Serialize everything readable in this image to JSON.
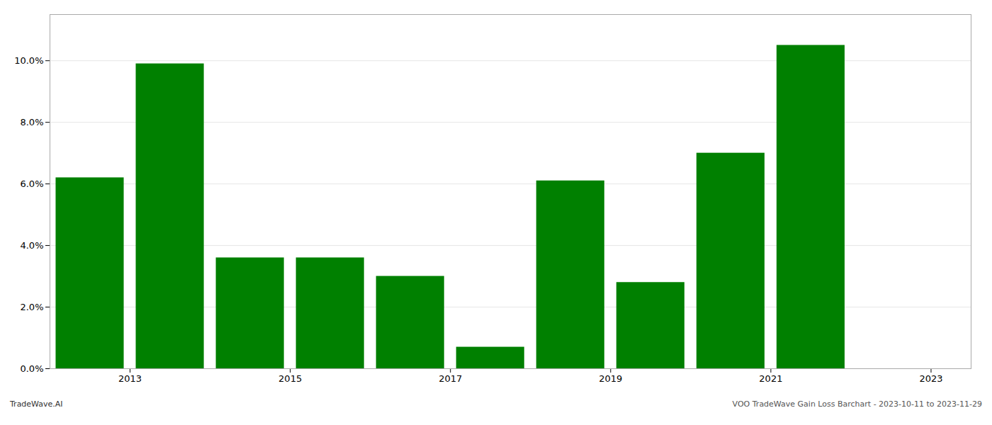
{
  "chart_data": {
    "type": "bar",
    "x": [
      2013,
      2014,
      2015,
      2016,
      2017,
      2018,
      2019,
      2020,
      2021,
      2022
    ],
    "values": [
      0.062,
      0.099,
      0.036,
      0.036,
      0.03,
      0.007,
      0.061,
      0.028,
      0.07,
      0.105
    ],
    "color": "#008000",
    "xlim": [
      2012.5,
      2024.0
    ],
    "xticks": [
      {
        "value": 2013.5,
        "label": "2013"
      },
      {
        "value": 2015.5,
        "label": "2015"
      },
      {
        "value": 2017.5,
        "label": "2017"
      },
      {
        "value": 2019.5,
        "label": "2019"
      },
      {
        "value": 2021.5,
        "label": "2021"
      },
      {
        "value": 2023.5,
        "label": "2023"
      }
    ],
    "ylim": [
      0,
      0.115
    ],
    "yticks": [
      {
        "value": 0.0,
        "label": "0.0%"
      },
      {
        "value": 0.02,
        "label": "2.0%"
      },
      {
        "value": 0.04,
        "label": "4.0%"
      },
      {
        "value": 0.06,
        "label": "6.0%"
      },
      {
        "value": 0.08,
        "label": "8.0%"
      },
      {
        "value": 0.1,
        "label": "10.0%"
      }
    ],
    "grid": true,
    "annotations": [
      "TradeWave.AI",
      "VOO TradeWave Gain Loss Barchart - 2023-10-11 to 2023-11-29"
    ]
  }
}
